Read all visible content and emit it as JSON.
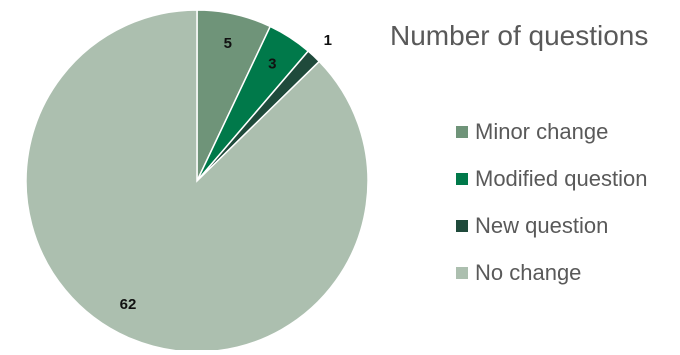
{
  "chart_data": {
    "type": "pie",
    "title": "Number of questions",
    "legend_position": "right",
    "start_angle": "top",
    "direction": "clockwise",
    "slices": [
      {
        "name": "Minor change",
        "value": 5,
        "color": "#6f9479"
      },
      {
        "name": "Modified question",
        "value": 3,
        "color": "#00794a"
      },
      {
        "name": "New question",
        "value": 1,
        "color": "#1f4a3b"
      },
      {
        "name": "No change",
        "value": 62,
        "color": "#acbfaf"
      }
    ]
  }
}
